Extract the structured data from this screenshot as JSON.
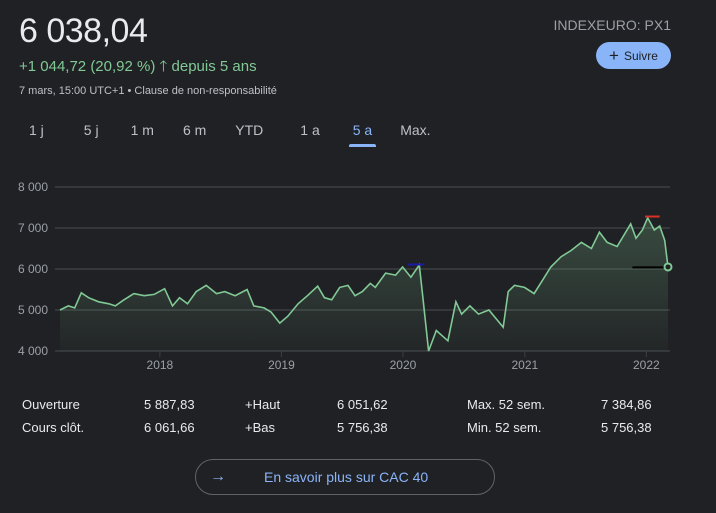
{
  "header": {
    "price": "6 038,04",
    "change": "+1 044,72 (20,92 %)",
    "change_arrow": "arrow-up-icon",
    "change_period": "depuis 5 ans",
    "meta": "7 mars, 15:00 UTC+1 • Clause de non-responsabilité",
    "ticker": "INDEXEURO: PX1",
    "follow_label": "Suivre"
  },
  "tabs": [
    {
      "label": "1 j"
    },
    {
      "label": "5 j"
    },
    {
      "label": "1 m"
    },
    {
      "label": "6 m"
    },
    {
      "label": "YTD"
    },
    {
      "label": "1 a"
    },
    {
      "label": "5 a",
      "active": true
    },
    {
      "label": "Max."
    }
  ],
  "colors": {
    "line": "#81c995",
    "accent": "#8ab4f8",
    "high_marker": "#d93025",
    "low_marker": "#1a1aa6",
    "close_marker": "#000000"
  },
  "chart_data": {
    "type": "area",
    "ylim": [
      4000,
      8000
    ],
    "yticks": [
      {
        "v": 4000,
        "label": "4 000"
      },
      {
        "v": 5000,
        "label": "5 000"
      },
      {
        "v": 6000,
        "label": "6 000"
      },
      {
        "v": 7000,
        "label": "7 000"
      },
      {
        "v": 8000,
        "label": "8 000"
      }
    ],
    "xticks": [
      {
        "v": "2018-01-01",
        "label": "2018"
      },
      {
        "v": "2019-01-01",
        "label": "2019"
      },
      {
        "v": "2020-01-01",
        "label": "2020"
      },
      {
        "v": "2021-01-01",
        "label": "2021"
      },
      {
        "v": "2022-01-01",
        "label": "2022"
      }
    ],
    "xlim": [
      "2017-03-07",
      "2022-03-07"
    ],
    "grid": true,
    "points": [
      [
        "2017-03-07",
        5000
      ],
      [
        "2017-04-01",
        5100
      ],
      [
        "2017-04-20",
        5050
      ],
      [
        "2017-05-10",
        5420
      ],
      [
        "2017-06-01",
        5300
      ],
      [
        "2017-07-01",
        5200
      ],
      [
        "2017-08-01",
        5150
      ],
      [
        "2017-08-20",
        5100
      ],
      [
        "2017-09-15",
        5250
      ],
      [
        "2017-10-15",
        5400
      ],
      [
        "2017-11-15",
        5350
      ],
      [
        "2017-12-15",
        5380
      ],
      [
        "2018-01-15",
        5520
      ],
      [
        "2018-02-08",
        5100
      ],
      [
        "2018-03-01",
        5300
      ],
      [
        "2018-03-25",
        5150
      ],
      [
        "2018-04-20",
        5450
      ],
      [
        "2018-05-20",
        5600
      ],
      [
        "2018-06-20",
        5400
      ],
      [
        "2018-07-15",
        5450
      ],
      [
        "2018-08-15",
        5350
      ],
      [
        "2018-09-20",
        5500
      ],
      [
        "2018-10-10",
        5100
      ],
      [
        "2018-11-10",
        5050
      ],
      [
        "2018-12-01",
        4950
      ],
      [
        "2018-12-27",
        4680
      ],
      [
        "2019-01-20",
        4850
      ],
      [
        "2019-02-20",
        5150
      ],
      [
        "2019-03-20",
        5350
      ],
      [
        "2019-04-20",
        5580
      ],
      [
        "2019-05-10",
        5300
      ],
      [
        "2019-06-01",
        5250
      ],
      [
        "2019-06-25",
        5550
      ],
      [
        "2019-07-20",
        5600
      ],
      [
        "2019-08-10",
        5350
      ],
      [
        "2019-09-01",
        5450
      ],
      [
        "2019-09-25",
        5650
      ],
      [
        "2019-10-10",
        5550
      ],
      [
        "2019-11-10",
        5900
      ],
      [
        "2019-12-10",
        5850
      ],
      [
        "2019-12-31",
        6050
      ],
      [
        "2020-01-25",
        5800
      ],
      [
        "2020-02-19",
        6100
      ],
      [
        "2020-03-01",
        5300
      ],
      [
        "2020-03-18",
        4000
      ],
      [
        "2020-04-10",
        4500
      ],
      [
        "2020-05-01",
        4350
      ],
      [
        "2020-05-15",
        4250
      ],
      [
        "2020-06-08",
        5200
      ],
      [
        "2020-06-25",
        4900
      ],
      [
        "2020-07-20",
        5100
      ],
      [
        "2020-08-15",
        4900
      ],
      [
        "2020-09-15",
        5000
      ],
      [
        "2020-10-28",
        4580
      ],
      [
        "2020-11-12",
        5450
      ],
      [
        "2020-12-01",
        5600
      ],
      [
        "2020-12-31",
        5550
      ],
      [
        "2021-01-29",
        5400
      ],
      [
        "2021-02-25",
        5750
      ],
      [
        "2021-03-20",
        6050
      ],
      [
        "2021-04-20",
        6300
      ],
      [
        "2021-05-20",
        6450
      ],
      [
        "2021-06-20",
        6650
      ],
      [
        "2021-07-20",
        6500
      ],
      [
        "2021-08-13",
        6900
      ],
      [
        "2021-09-05",
        6650
      ],
      [
        "2021-10-05",
        6550
      ],
      [
        "2021-11-15",
        7100
      ],
      [
        "2021-12-01",
        6750
      ],
      [
        "2021-12-20",
        6950
      ],
      [
        "2022-01-05",
        7250
      ],
      [
        "2022-01-25",
        6950
      ],
      [
        "2022-02-10",
        7050
      ],
      [
        "2022-02-25",
        6700
      ],
      [
        "2022-03-07",
        6050
      ]
    ],
    "reference_lines": [
      {
        "name": "high",
        "v": 7280,
        "from": "2021-12-28",
        "to": "2022-02-10"
      },
      {
        "name": "low",
        "v": 6110,
        "from": "2020-01-15",
        "to": "2020-03-05"
      },
      {
        "name": "close",
        "v": 6040,
        "from": "2021-11-20",
        "to": "2022-03-07"
      }
    ]
  },
  "stats": [
    [
      {
        "label": "Ouverture",
        "value": "5 887,83"
      },
      {
        "label": "+Haut",
        "value": "6 051,62"
      },
      {
        "label": "Max. 52 sem.",
        "value": "7 384,86"
      }
    ],
    [
      {
        "label": "Cours clôt.",
        "value": "6 061,66"
      },
      {
        "label": "+Bas",
        "value": "5 756,38"
      },
      {
        "label": "Min. 52 sem.",
        "value": "5 756,38"
      }
    ]
  ],
  "more_link": "En savoir plus sur CAC 40"
}
